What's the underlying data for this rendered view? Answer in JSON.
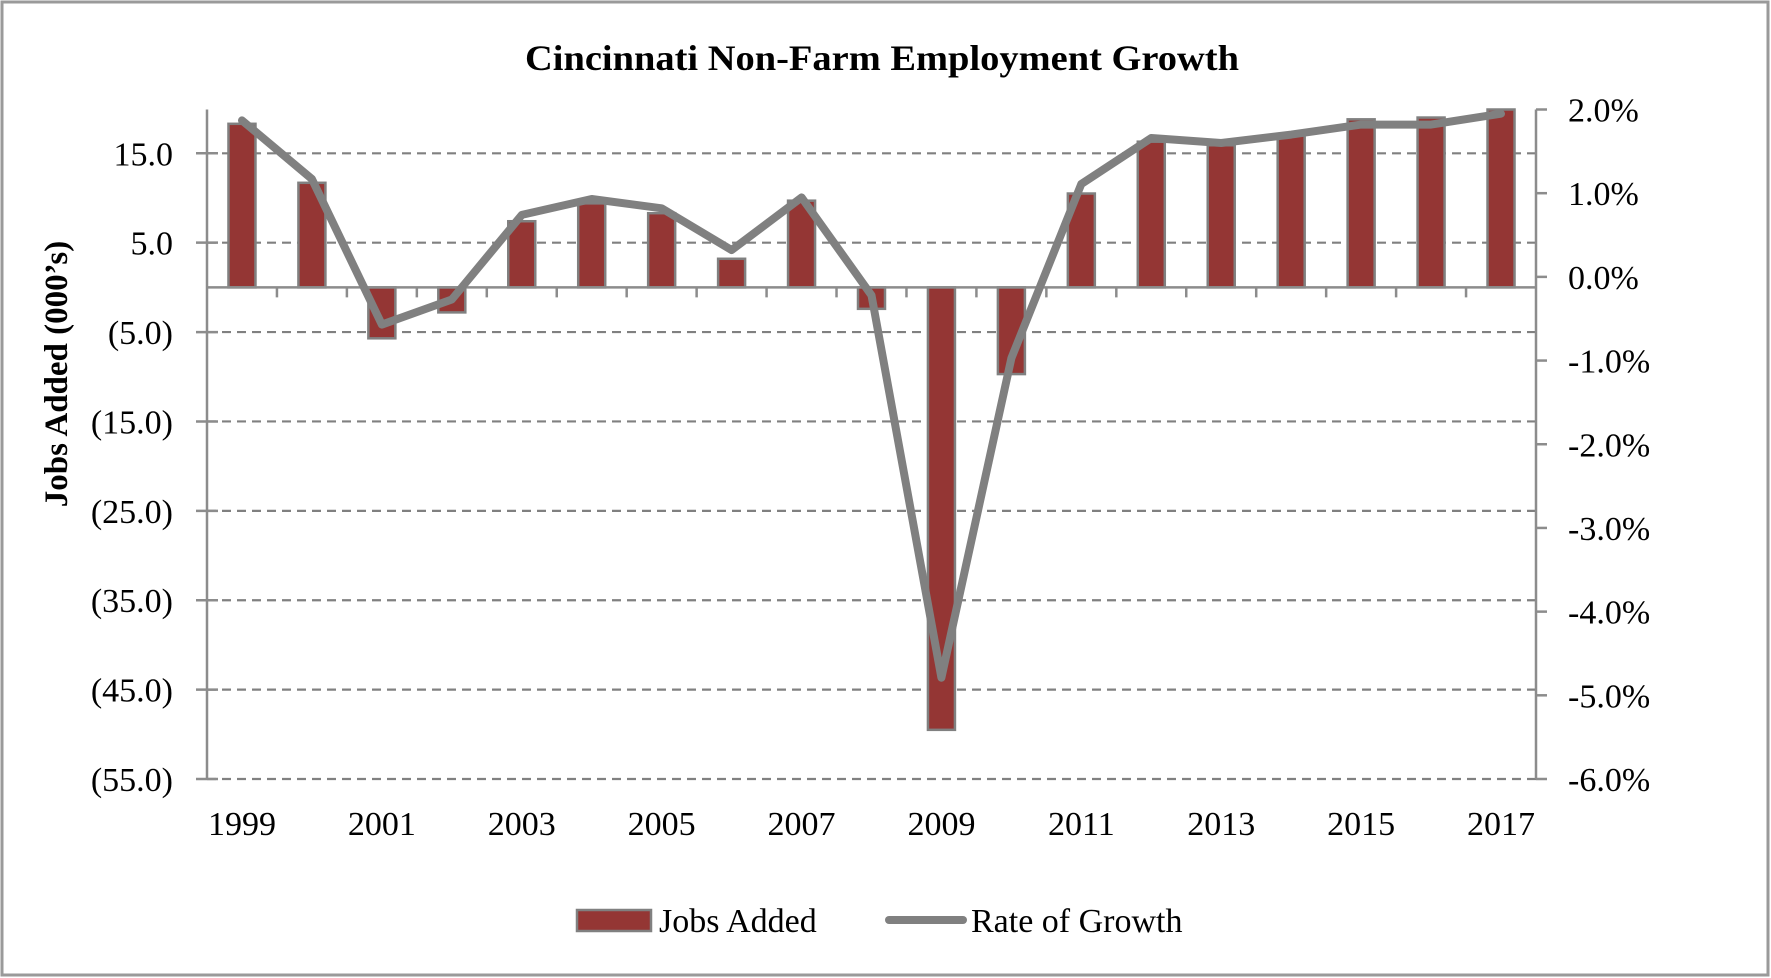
{
  "chart_data": {
    "type": "bar",
    "title": "Cincinnati Non-Farm Employment Growth",
    "xlabel": "",
    "ylabel": "Jobs Added (000’s)",
    "y2label": "",
    "categories": [
      "1999",
      "2000",
      "2001",
      "2002",
      "2003",
      "2004",
      "2005",
      "2006",
      "2007",
      "2008",
      "2009",
      "2010",
      "2011",
      "2012",
      "2013",
      "2014",
      "2015",
      "2016",
      "2017"
    ],
    "x_tick_labels": [
      "1999",
      "2001",
      "2003",
      "2005",
      "2007",
      "2009",
      "2011",
      "2013",
      "2015",
      "2017"
    ],
    "series": [
      {
        "name": "Jobs Added",
        "type": "bar",
        "axis": "left",
        "color": "#943634",
        "values": [
          18.3,
          11.7,
          -5.7,
          -2.8,
          7.4,
          9.4,
          8.3,
          3.2,
          9.7,
          -2.4,
          -49.5,
          -9.7,
          10.5,
          16.3,
          15.9,
          17.0,
          18.8,
          19.0,
          19.9
        ]
      },
      {
        "name": "Rate of Growth",
        "type": "line",
        "axis": "right",
        "color": "#808080",
        "unit": "%",
        "values": [
          1.87,
          1.17,
          -0.57,
          -0.27,
          0.74,
          0.93,
          0.82,
          0.32,
          0.95,
          -0.22,
          -4.79,
          -0.97,
          1.11,
          1.66,
          1.6,
          1.7,
          1.82,
          1.82,
          1.95
        ]
      }
    ],
    "ylim": [
      -55,
      19.9
    ],
    "y_ticks": [
      15,
      5,
      -5,
      -15,
      -25,
      -35,
      -45,
      -55
    ],
    "y_tick_labels": [
      "15.0",
      "5.0",
      "(5.0)",
      "(15.0)",
      "(25.0)",
      "(35.0)",
      "(45.0)",
      "(55.0)"
    ],
    "y2lim": [
      -6.0,
      2.0
    ],
    "y2_ticks": [
      2,
      1,
      0,
      -1,
      -2,
      -3,
      -4,
      -5,
      -6
    ],
    "y2_tick_labels": [
      "2.0%",
      "1.0%",
      "0.0%",
      "-1.0%",
      "-2.0%",
      "-3.0%",
      "-4.0%",
      "-5.0%",
      "-6.0%"
    ],
    "grid": "horizontal dashed (left axis major ticks)",
    "legend": {
      "position": "bottom",
      "entries": [
        "Jobs Added",
        "Rate of Growth"
      ]
    },
    "colors": {
      "bar_fill": "#943634",
      "bar_stroke": "#808080",
      "line": "#808080",
      "axis": "#8c8c8c",
      "grid": "#808080",
      "border": "#9a9a9a"
    }
  }
}
